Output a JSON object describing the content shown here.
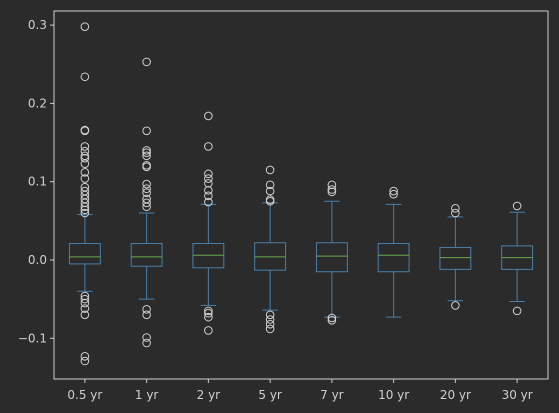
{
  "chart_data": {
    "type": "boxplot",
    "title": "",
    "xlabel": "",
    "ylabel": "",
    "ylim": [
      -0.152,
      0.318
    ],
    "yticks": [
      -0.1,
      0.0,
      0.1,
      0.2,
      0.3
    ],
    "ytick_labels": [
      "−0.1",
      "0.0",
      "0.1",
      "0.2",
      "0.3"
    ],
    "grid": false,
    "legend": "none",
    "colors": {
      "background": "#2b2b2b",
      "axes": "#cfcfcf",
      "box": "#4a7fa8",
      "median": "#6aa84f",
      "outlier": "#cfcfcf"
    },
    "categories": [
      "0.5 yr",
      "1 yr",
      "2 yr",
      "5 yr",
      "7 yr",
      "10 yr",
      "20 yr",
      "30 yr"
    ],
    "boxes": [
      {
        "q1": -0.005,
        "median": 0.004,
        "q3": 0.021,
        "whislo": -0.04,
        "whishi": 0.058,
        "fliers": [
          0.298,
          0.234,
          0.166,
          0.165,
          0.145,
          0.139,
          0.133,
          0.13,
          0.123,
          0.112,
          0.104,
          0.093,
          0.088,
          0.083,
          0.078,
          0.073,
          0.068,
          0.064,
          0.06,
          -0.046,
          -0.05,
          -0.055,
          -0.062,
          -0.07,
          -0.123,
          -0.129
        ]
      },
      {
        "q1": -0.008,
        "median": 0.004,
        "q3": 0.021,
        "whislo": -0.05,
        "whishi": 0.06,
        "fliers": [
          0.253,
          0.165,
          0.14,
          0.137,
          0.133,
          0.121,
          0.119,
          0.097,
          0.091,
          0.086,
          0.078,
          0.073,
          0.068,
          -0.063,
          -0.07,
          -0.099,
          -0.106
        ]
      },
      {
        "q1": -0.01,
        "median": 0.006,
        "q3": 0.021,
        "whislo": -0.058,
        "whishi": 0.071,
        "fliers": [
          0.184,
          0.145,
          0.11,
          0.104,
          0.098,
          0.089,
          0.082,
          0.074,
          -0.065,
          -0.068,
          -0.073,
          -0.09
        ]
      },
      {
        "q1": -0.013,
        "median": 0.004,
        "q3": 0.022,
        "whislo": -0.064,
        "whishi": 0.073,
        "fliers": [
          0.115,
          0.096,
          0.088,
          0.077,
          0.075,
          -0.07,
          -0.076,
          -0.082,
          -0.088
        ]
      },
      {
        "q1": -0.015,
        "median": 0.005,
        "q3": 0.022,
        "whislo": -0.073,
        "whishi": 0.075,
        "fliers": [
          0.096,
          0.09,
          0.087,
          -0.074,
          -0.077
        ]
      },
      {
        "q1": -0.015,
        "median": 0.006,
        "q3": 0.021,
        "whislo": -0.073,
        "whishi": 0.071,
        "fliers": [
          0.088,
          0.084
        ]
      },
      {
        "q1": -0.012,
        "median": 0.003,
        "q3": 0.016,
        "whislo": -0.052,
        "whishi": 0.055,
        "fliers": [
          0.066,
          0.06,
          -0.058
        ]
      },
      {
        "q1": -0.012,
        "median": 0.003,
        "q3": 0.018,
        "whislo": -0.053,
        "whishi": 0.061,
        "fliers": [
          0.069,
          -0.065
        ]
      }
    ]
  }
}
